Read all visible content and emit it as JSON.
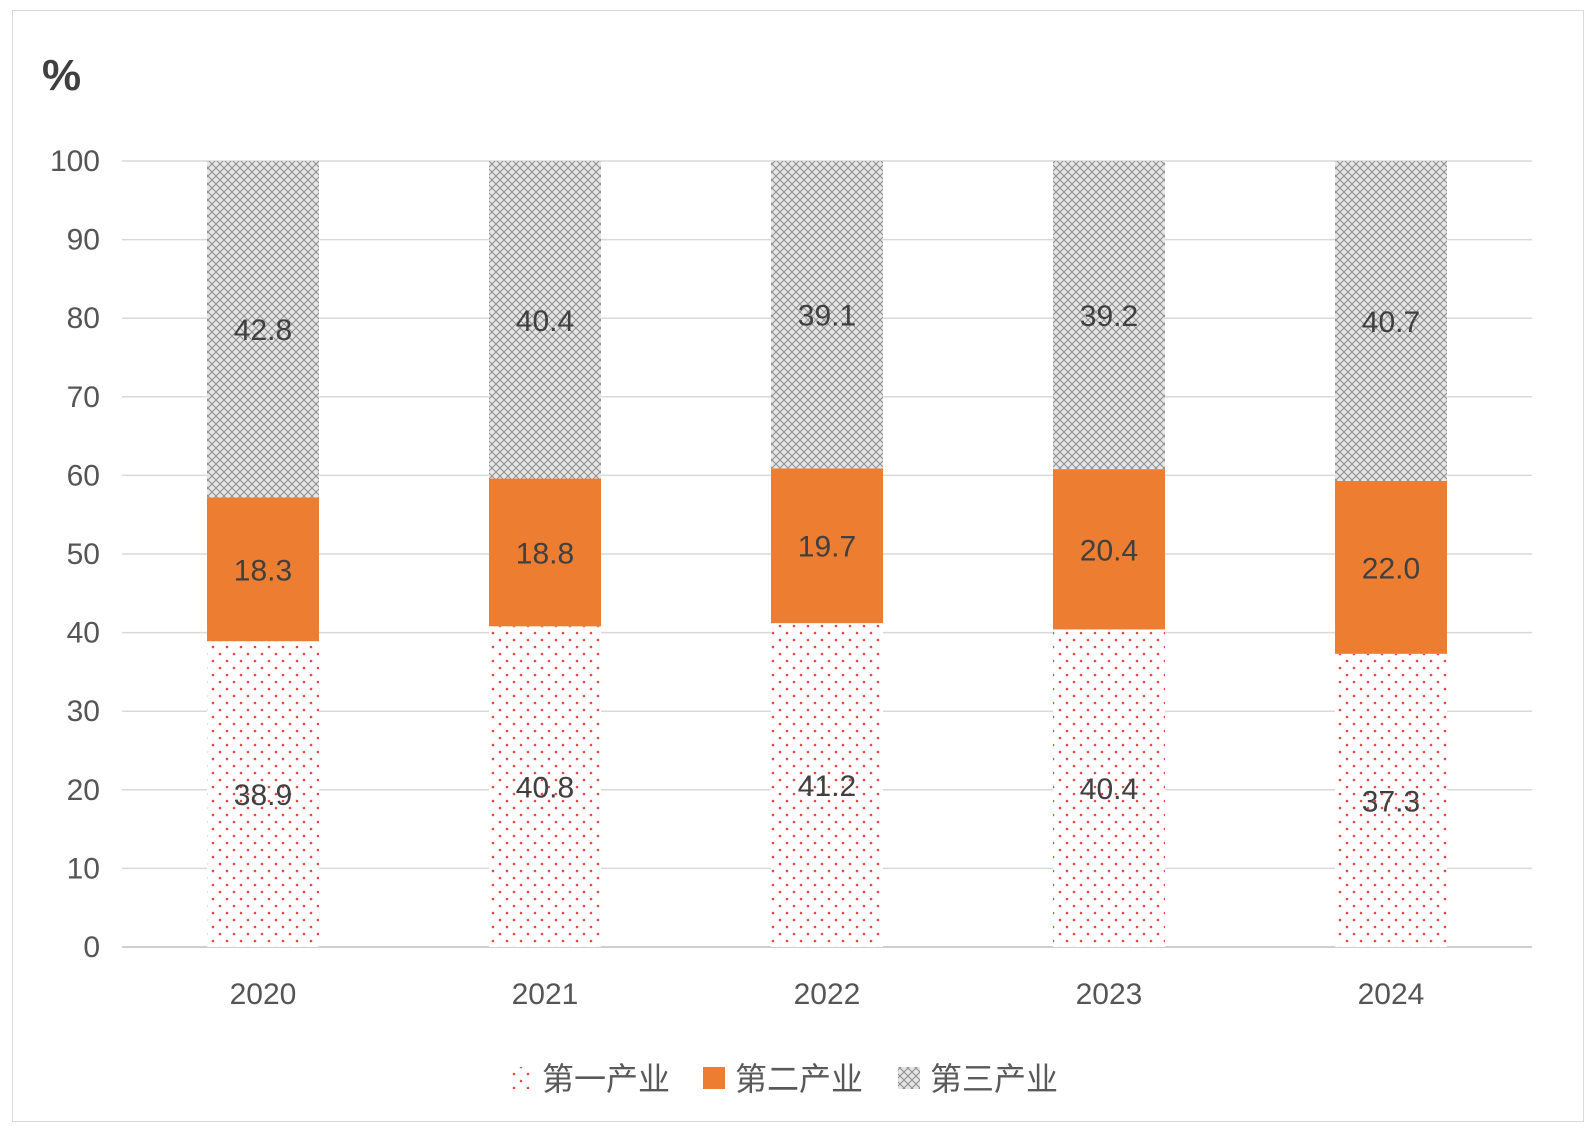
{
  "chart_data": {
    "type": "bar",
    "stacked": true,
    "unit_label": "%",
    "categories": [
      "2020",
      "2021",
      "2022",
      "2023",
      "2024"
    ],
    "series": [
      {
        "name": "第一产业",
        "values": [
          38.9,
          40.8,
          41.2,
          40.4,
          37.3
        ],
        "color": "#e8453c",
        "pattern": "dots"
      },
      {
        "name": "第二产业",
        "values": [
          18.3,
          18.8,
          19.7,
          20.4,
          22.0
        ],
        "color": "#ed7d31",
        "pattern": "solid"
      },
      {
        "name": "第三产业",
        "values": [
          42.8,
          40.4,
          39.1,
          39.2,
          40.7
        ],
        "color": "#a6a6a6",
        "pattern": "crosshatch"
      }
    ],
    "ylim": [
      0,
      100
    ],
    "yticks": [
      0,
      10,
      20,
      30,
      40,
      50,
      60,
      70,
      80,
      90,
      100
    ],
    "xlabel": "",
    "ylabel": "",
    "grid": true,
    "legend_position": "bottom"
  }
}
